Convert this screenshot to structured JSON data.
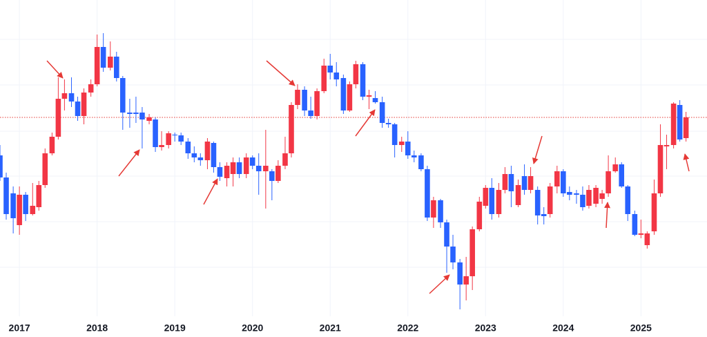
{
  "chart_data": {
    "type": "candlestick",
    "x": [
      2016.75,
      2016.83,
      2016.92,
      2017,
      2017.08,
      2017.17,
      2017.25,
      2017.33,
      2017.42,
      2017.5,
      2017.58,
      2017.67,
      2017.75,
      2017.83,
      2017.92,
      2018,
      2018.08,
      2018.17,
      2018.25,
      2018.33,
      2018.42,
      2018.5,
      2018.58,
      2018.67,
      2018.75,
      2018.83,
      2018.92,
      2019,
      2019.08,
      2019.17,
      2019.25,
      2019.33,
      2019.42,
      2019.5,
      2019.58,
      2019.67,
      2019.75,
      2019.83,
      2019.92,
      2020,
      2020.08,
      2020.17,
      2020.25,
      2020.33,
      2020.42,
      2020.5,
      2020.58,
      2020.67,
      2020.75,
      2020.83,
      2020.92,
      2021,
      2021.08,
      2021.17,
      2021.25,
      2021.33,
      2021.42,
      2021.5,
      2021.58,
      2021.67,
      2021.75,
      2021.83,
      2021.92,
      2022,
      2022.08,
      2022.17,
      2022.25,
      2022.33,
      2022.42,
      2022.5,
      2022.58,
      2022.67,
      2022.75,
      2022.83,
      2022.92,
      2023,
      2023.08,
      2023.17,
      2023.25,
      2023.33,
      2023.42,
      2023.5,
      2023.58,
      2023.67,
      2023.75,
      2023.83,
      2023.92,
      2024,
      2024.08,
      2024.17,
      2024.25,
      2024.33,
      2024.42,
      2024.5,
      2024.58,
      2024.67,
      2024.75,
      2024.83,
      2024.92,
      2025,
      2025.08,
      2025.17,
      2025.25,
      2025.33,
      2025.42,
      2025.5,
      2025.58
    ],
    "open": [
      263,
      231,
      208,
      162,
      206,
      178,
      188,
      220,
      266,
      290,
      345,
      353,
      341,
      320,
      354,
      366,
      420,
      390,
      406,
      375,
      325,
      325,
      325,
      313,
      315,
      275,
      278,
      293,
      292,
      283,
      266,
      260,
      256,
      281,
      246,
      230,
      236,
      253,
      236,
      260,
      248,
      240,
      240,
      226,
      248,
      266,
      336,
      358,
      328,
      320,
      356,
      393,
      383,
      375,
      328,
      366,
      395,
      348,
      346,
      340,
      310,
      308,
      278,
      283,
      263,
      263,
      243,
      173,
      198,
      166,
      131,
      108,
      76,
      88,
      156,
      190,
      216,
      178,
      213,
      236,
      191,
      233,
      213,
      213,
      178,
      178,
      218,
      240,
      210,
      208,
      206,
      190,
      193,
      200,
      208,
      240,
      250,
      218,
      178,
      148,
      133,
      153,
      208,
      276,
      278,
      336,
      288
    ],
    "high": [
      278,
      238,
      218,
      218,
      210,
      223,
      226,
      273,
      296,
      376,
      373,
      376,
      348,
      360,
      373,
      438,
      440,
      428,
      413,
      378,
      345,
      348,
      333,
      323,
      318,
      298,
      298,
      296,
      296,
      288,
      276,
      266,
      288,
      283,
      253,
      253,
      260,
      260,
      266,
      263,
      266,
      300,
      243,
      256,
      290,
      340,
      366,
      363,
      348,
      360,
      403,
      410,
      398,
      380,
      370,
      400,
      398,
      358,
      356,
      348,
      316,
      310,
      290,
      298,
      270,
      266,
      248,
      203,
      200,
      170,
      148,
      113,
      116,
      160,
      203,
      220,
      230,
      223,
      246,
      248,
      228,
      250,
      246,
      218,
      188,
      223,
      248,
      243,
      218,
      213,
      218,
      220,
      220,
      213,
      263,
      260,
      253,
      220,
      183,
      170,
      153,
      228,
      308,
      293,
      340,
      343,
      326
    ],
    "low": [
      226,
      170,
      150,
      148,
      168,
      176,
      183,
      216,
      263,
      286,
      328,
      333,
      313,
      308,
      348,
      363,
      384,
      386,
      370,
      300,
      303,
      310,
      273,
      308,
      268,
      270,
      273,
      283,
      278,
      258,
      253,
      248,
      243,
      238,
      226,
      218,
      218,
      230,
      230,
      243,
      206,
      186,
      198,
      223,
      243,
      260,
      330,
      320,
      316,
      315,
      353,
      373,
      363,
      323,
      326,
      360,
      343,
      330,
      338,
      303,
      303,
      260,
      268,
      258,
      253,
      240,
      168,
      158,
      158,
      93,
      98,
      40,
      53,
      68,
      153,
      186,
      170,
      173,
      208,
      188,
      188,
      206,
      208,
      163,
      163,
      173,
      208,
      203,
      198,
      193,
      183,
      186,
      188,
      193,
      203,
      238,
      216,
      168,
      146,
      143,
      128,
      148,
      203,
      243,
      273,
      283,
      283
    ],
    "close": [
      231,
      178,
      172,
      206,
      178,
      190,
      220,
      266,
      290,
      345,
      353,
      341,
      320,
      354,
      366,
      420,
      390,
      406,
      375,
      325,
      323,
      323,
      315,
      318,
      275,
      278,
      295,
      292,
      283,
      266,
      260,
      256,
      283,
      246,
      232,
      248,
      253,
      236,
      260,
      248,
      240,
      248,
      226,
      248,
      266,
      336,
      358,
      328,
      320,
      356,
      393,
      383,
      373,
      328,
      366,
      395,
      348,
      350,
      340,
      310,
      308,
      278,
      283,
      263,
      260,
      243,
      173,
      198,
      166,
      131,
      108,
      76,
      88,
      156,
      196,
      216,
      178,
      213,
      236,
      211,
      220,
      213,
      233,
      176,
      175,
      218,
      240,
      208,
      206,
      206,
      188,
      213,
      216,
      208,
      240,
      250,
      218,
      178,
      148,
      150,
      150,
      208,
      278,
      278,
      338,
      286,
      318
    ],
    "up_color": "#f23645",
    "down_color": "#2962ff",
    "xlim": [
      2016.75,
      2025.85
    ],
    "xticks": [
      2017,
      2018,
      2019,
      2020,
      2021,
      2022,
      2023,
      2024,
      2025
    ],
    "ylim": [
      0,
      488
    ],
    "y_gridlines": [
      431,
      365,
      298,
      233,
      167,
      101
    ],
    "grid": true,
    "reference_line": {
      "value": 318,
      "color": "#e53935"
    }
  }
}
